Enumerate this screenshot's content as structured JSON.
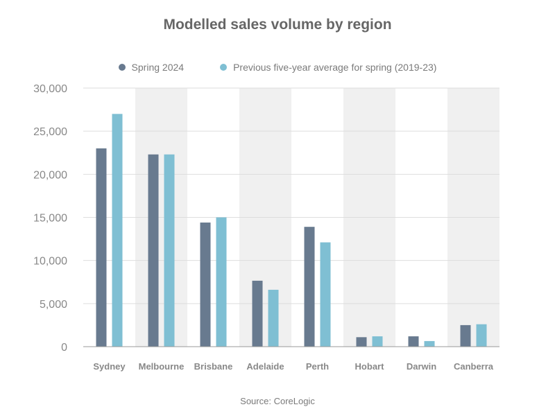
{
  "chart_data": {
    "type": "bar",
    "title": "Modelled sales volume by region",
    "xlabel": "",
    "ylabel": "",
    "ylim": [
      0,
      30000
    ],
    "yticks": [
      0,
      5000,
      10000,
      15000,
      20000,
      25000,
      30000
    ],
    "ytick_labels": [
      "0",
      "5,000",
      "10,000",
      "15,000",
      "20,000",
      "25,000",
      "30,000"
    ],
    "grid": true,
    "legend_position": "top-center",
    "categories": [
      "Sydney",
      "Melbourne",
      "Brisbane",
      "Adelaide",
      "Perth",
      "Hobart",
      "Darwin",
      "Canberra"
    ],
    "series": [
      {
        "name": "Spring 2024",
        "color": "#687a8f",
        "values": [
          23000,
          22300,
          14400,
          7650,
          13900,
          1100,
          1200,
          2500
        ]
      },
      {
        "name": "Previous five-year average for spring (2019-23)",
        "color": "#7fbfd3",
        "values": [
          27000,
          22300,
          15000,
          6600,
          12100,
          1200,
          650,
          2600
        ]
      }
    ],
    "source": "Source: CoreLogic"
  },
  "colors": {
    "band": "#f0f0f0",
    "grid": "#dddddd",
    "axis": "#999999",
    "text": "#7a7a7a"
  }
}
